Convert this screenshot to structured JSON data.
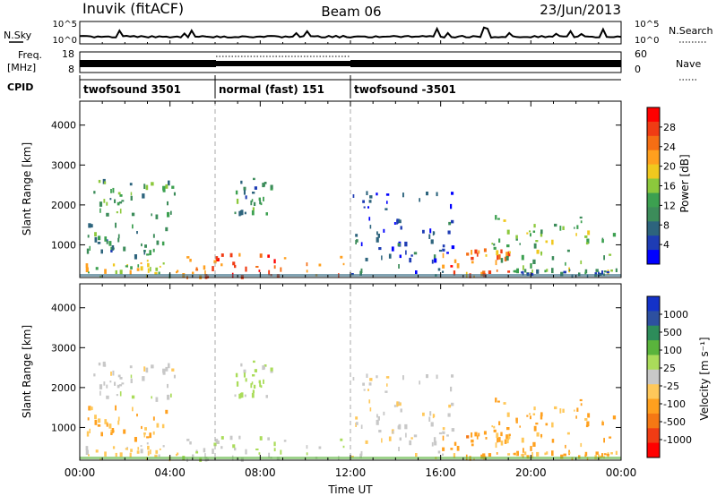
{
  "header": {
    "station": "Inuvik (fitACF)",
    "beam": "Beam 06",
    "date": "23/Jun/2013"
  },
  "top_panels": {
    "nsky_label": "N.Sky",
    "nsky_ticks": [
      "10^5",
      "10^0"
    ],
    "nsearch_label": "N.Search",
    "nsearch_ticks": [
      "10^5",
      "10^0"
    ],
    "freq_label_1": "Freq.",
    "freq_label_2": "[MHz]",
    "freq_ticks": [
      "18",
      "8"
    ],
    "nave_label": "Nave",
    "nave_ticks": [
      "60",
      "0"
    ],
    "cpid_label": "CPID",
    "cpid_segments": [
      {
        "label": "twofsound 3501",
        "start_hour": 0,
        "end_hour": 6
      },
      {
        "label": "normal (fast) 151",
        "start_hour": 6,
        "end_hour": 12
      },
      {
        "label": "twofsound -3501",
        "start_hour": 12,
        "end_hour": 24
      }
    ]
  },
  "power_colorbar": {
    "label": "Power [dB]",
    "ticks": [
      "28",
      "24",
      "20",
      "16",
      "12",
      "8",
      "4"
    ],
    "colors": [
      "#ff0000",
      "#f03c14",
      "#f56e14",
      "#ffa01e",
      "#f0c81e",
      "#8cc83c",
      "#3ca050",
      "#3c8c5a",
      "#2d647d",
      "#1e3cb4",
      "#0000ff"
    ]
  },
  "velocity_colorbar": {
    "label": "Velocity [m s⁻¹]",
    "ticks": [
      "1000",
      "500",
      "100",
      "25",
      "-25",
      "-100",
      "-500",
      "-1000"
    ],
    "colors": [
      "#1432c8",
      "#2d50a0",
      "#2d8c5a",
      "#5ab43c",
      "#aadc5a",
      "#c8c8c8",
      "#ffc85a",
      "#ffa01e",
      "#f57814",
      "#f03c14",
      "#ff0000"
    ]
  },
  "chart_data": {
    "type": "heatmap",
    "xlabel": "Time UT",
    "xticks": [
      "00:00",
      "04:00",
      "08:00",
      "12:00",
      "16:00",
      "20:00",
      "00:00"
    ],
    "xlim_hours": [
      0,
      24
    ],
    "ylabel": "Slant Range [km]",
    "yticks": [
      1000,
      2000,
      3000,
      4000
    ],
    "ylim_km": [
      180,
      4600
    ],
    "panels": [
      "Power",
      "Velocity"
    ],
    "scatter_regions": [
      {
        "t0": 0.0,
        "t1": 4.4,
        "r0": 180,
        "r1": 600,
        "power_db": 18,
        "velocity": -150
      },
      {
        "t0": 0.5,
        "t1": 4.2,
        "r0": 1700,
        "r1": 2600,
        "power_db": 12,
        "velocity": 0
      },
      {
        "t0": 0.3,
        "t1": 4.0,
        "r0": 700,
        "r1": 1500,
        "power_db": 10,
        "velocity": -300
      },
      {
        "t0": 4.5,
        "t1": 11.8,
        "r0": 180,
        "r1": 750,
        "power_db": 26,
        "velocity": 80
      },
      {
        "t0": 6.8,
        "t1": 8.5,
        "r0": 1700,
        "r1": 2700,
        "power_db": 10,
        "velocity": 150
      },
      {
        "t0": 12.0,
        "t1": 16.5,
        "r0": 200,
        "r1": 2300,
        "power_db": 6,
        "velocity": -50
      },
      {
        "t0": 16.0,
        "t1": 19.0,
        "r0": 200,
        "r1": 900,
        "power_db": 24,
        "velocity": -400
      },
      {
        "t0": 18.2,
        "t1": 24.0,
        "r0": 300,
        "r1": 1700,
        "power_db": 14,
        "velocity": -300
      },
      {
        "t0": 19.0,
        "t1": 24.0,
        "r0": 200,
        "r1": 400,
        "power_db": 8,
        "velocity": -300
      }
    ]
  }
}
